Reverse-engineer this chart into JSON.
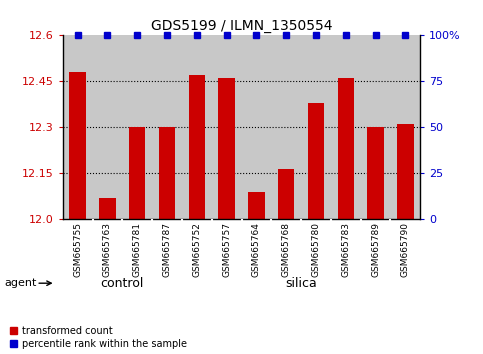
{
  "title": "GDS5199 / ILMN_1350554",
  "samples": [
    "GSM665755",
    "GSM665763",
    "GSM665781",
    "GSM665787",
    "GSM665752",
    "GSM665757",
    "GSM665764",
    "GSM665768",
    "GSM665780",
    "GSM665783",
    "GSM665789",
    "GSM665790"
  ],
  "transformed_counts": [
    12.48,
    12.07,
    12.3,
    12.3,
    12.47,
    12.46,
    12.09,
    12.165,
    12.38,
    12.46,
    12.3,
    12.31
  ],
  "percentile_ranks": [
    100,
    100,
    100,
    100,
    100,
    100,
    100,
    100,
    100,
    100,
    100,
    100
  ],
  "groups": [
    "control",
    "control",
    "control",
    "control",
    "silica",
    "silica",
    "silica",
    "silica",
    "silica",
    "silica",
    "silica",
    "silica"
  ],
  "bar_color": "#CC0000",
  "dot_color": "#0000CC",
  "ylim_left": [
    12.0,
    12.6
  ],
  "ylim_right": [
    0,
    100
  ],
  "yticks_left": [
    12.0,
    12.15,
    12.3,
    12.45,
    12.6
  ],
  "yticks_right": [
    0,
    25,
    50,
    75,
    100
  ],
  "background_color": "#ffffff",
  "bar_bg_color": "#c8c8c8",
  "grid_color": "#000000",
  "green_color": "#66ee66",
  "legend_items": [
    "transformed count",
    "percentile rank within the sample"
  ],
  "agent_label": "agent",
  "control_count": 4,
  "silica_count": 8
}
